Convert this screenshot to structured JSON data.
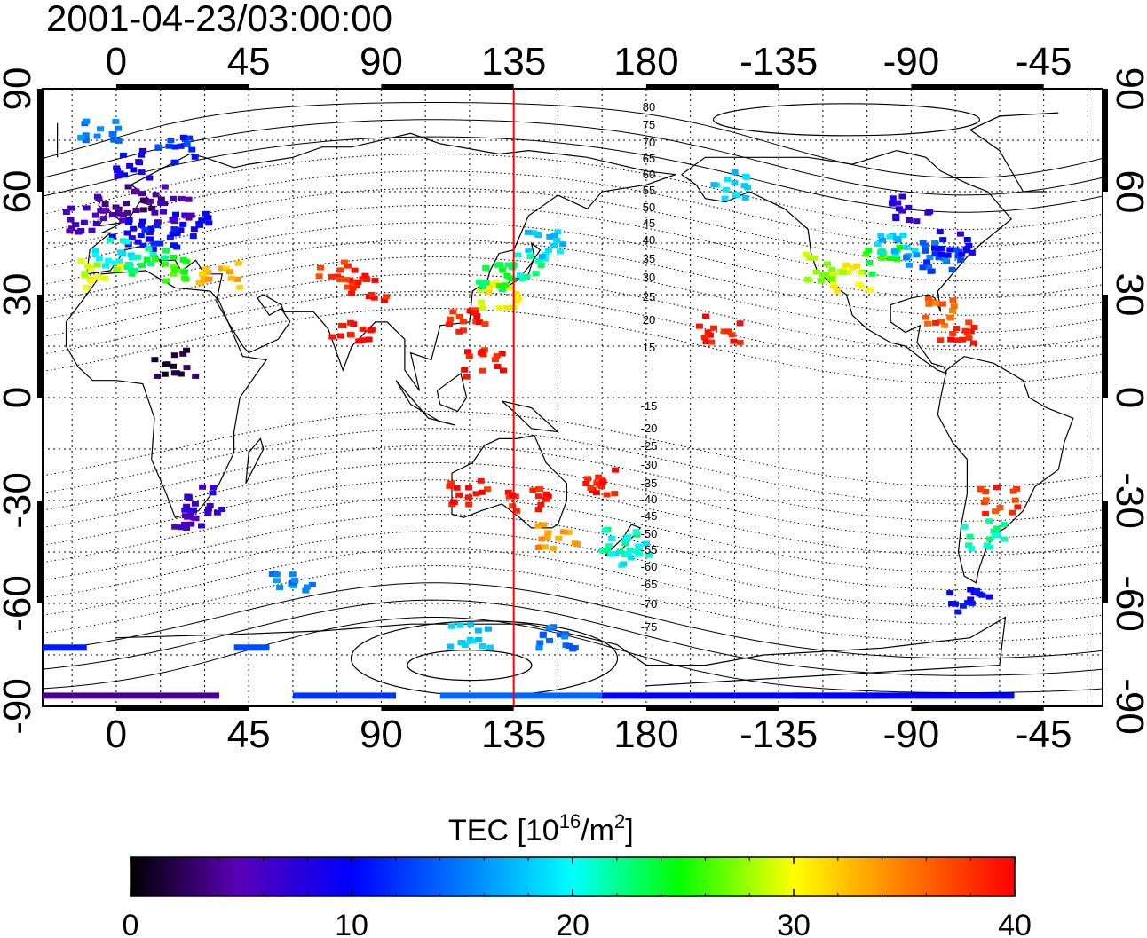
{
  "title": "2001-04-23/03:00:00",
  "map": {
    "top_lon_ticks": [
      "0",
      "45",
      "90",
      "135",
      "180",
      "-135",
      "-90",
      "-45"
    ],
    "bottom_lon_ticks": [
      "0",
      "45",
      "90",
      "135",
      "180",
      "-135",
      "-90",
      "-45"
    ],
    "left_lat_ticks": [
      "90",
      "60",
      "30",
      "0",
      "-30",
      "-60",
      "-90"
    ],
    "right_lat_ticks": [
      "90",
      "60",
      "30",
      "0",
      "-30",
      "-60",
      "-90"
    ],
    "lon_range": [
      -25,
      335
    ],
    "lat_range": [
      -90,
      90
    ],
    "grid": true,
    "marker_longitude": 135,
    "marker_color": "#ff0000",
    "magnetic_latitude_labels": [
      "80",
      "75",
      "70",
      "65",
      "60",
      "55",
      "50",
      "45",
      "40",
      "35",
      "30",
      "25",
      "20",
      "15",
      "-15",
      "-20",
      "-25",
      "-30",
      "-35",
      "-40",
      "-45",
      "-50",
      "-55",
      "-60",
      "-65",
      "-70",
      "-75"
    ]
  },
  "colorbar": {
    "label_prefix": "TEC  [10",
    "label_sup1": "16",
    "label_mid": "/m",
    "label_sup2": "2",
    "label_suffix": "]",
    "ticks": [
      "0",
      "10",
      "20",
      "30",
      "40"
    ],
    "range": [
      0,
      40
    ],
    "colors": [
      "#000000",
      "#5a00b4",
      "#0000ff",
      "#00ffff",
      "#00ff00",
      "#ffff00",
      "#ff0000"
    ]
  },
  "chart_data": {
    "type": "heatmap",
    "description_units": "TEC [10^16/m^2]",
    "points": [
      {
        "lon": 0,
        "lat": 55,
        "v": 5
      },
      {
        "lon": 10,
        "lat": 58,
        "v": 4
      },
      {
        "lon": 20,
        "lat": 55,
        "v": 6
      },
      {
        "lon": -10,
        "lat": 52,
        "v": 6
      },
      {
        "lon": 5,
        "lat": 48,
        "v": 9
      },
      {
        "lon": 15,
        "lat": 47,
        "v": 11
      },
      {
        "lon": 25,
        "lat": 50,
        "v": 10
      },
      {
        "lon": 0,
        "lat": 42,
        "v": 20
      },
      {
        "lon": 10,
        "lat": 40,
        "v": 23
      },
      {
        "lon": 20,
        "lat": 38,
        "v": 26
      },
      {
        "lon": -5,
        "lat": 36,
        "v": 29
      },
      {
        "lon": 35,
        "lat": 36,
        "v": 33
      },
      {
        "lon": 5,
        "lat": 68,
        "v": 9
      },
      {
        "lon": 20,
        "lat": 72,
        "v": 12
      },
      {
        "lon": -5,
        "lat": 78,
        "v": 15
      },
      {
        "lon": 75,
        "lat": 36,
        "v": 38
      },
      {
        "lon": 85,
        "lat": 32,
        "v": 39
      },
      {
        "lon": 80,
        "lat": 20,
        "v": 40
      },
      {
        "lon": 120,
        "lat": 22,
        "v": 39
      },
      {
        "lon": 125,
        "lat": 10,
        "v": 39
      },
      {
        "lon": 130,
        "lat": 30,
        "v": 30
      },
      {
        "lon": 140,
        "lat": 38,
        "v": 22
      },
      {
        "lon": 145,
        "lat": 45,
        "v": 18
      },
      {
        "lon": 130,
        "lat": 35,
        "v": 24
      },
      {
        "lon": 120,
        "lat": -28,
        "v": 39
      },
      {
        "lon": 140,
        "lat": -30,
        "v": 39
      },
      {
        "lon": 150,
        "lat": -40,
        "v": 34
      },
      {
        "lon": 170,
        "lat": -42,
        "v": 22
      },
      {
        "lon": 175,
        "lat": -45,
        "v": 20
      },
      {
        "lon": 165,
        "lat": -25,
        "v": 39
      },
      {
        "lon": 25,
        "lat": -35,
        "v": 6
      },
      {
        "lon": 30,
        "lat": -30,
        "v": 7
      },
      {
        "lon": 20,
        "lat": 10,
        "v": 2
      },
      {
        "lon": -100,
        "lat": 40,
        "v": 25
      },
      {
        "lon": -95,
        "lat": 45,
        "v": 18
      },
      {
        "lon": -85,
        "lat": 42,
        "v": 15
      },
      {
        "lon": -80,
        "lat": 40,
        "v": 12
      },
      {
        "lon": -75,
        "lat": 45,
        "v": 9
      },
      {
        "lon": -110,
        "lat": 35,
        "v": 30
      },
      {
        "lon": -120,
        "lat": 38,
        "v": 28
      },
      {
        "lon": -150,
        "lat": 62,
        "v": 18
      },
      {
        "lon": -90,
        "lat": 55,
        "v": 8
      },
      {
        "lon": -155,
        "lat": 20,
        "v": 39
      },
      {
        "lon": -80,
        "lat": 25,
        "v": 36
      },
      {
        "lon": -75,
        "lat": 18,
        "v": 39
      },
      {
        "lon": -60,
        "lat": -30,
        "v": 38
      },
      {
        "lon": -65,
        "lat": -40,
        "v": 22
      },
      {
        "lon": -70,
        "lat": -60,
        "v": 10
      },
      {
        "lon": 120,
        "lat": -70,
        "v": 18
      },
      {
        "lon": 150,
        "lat": -70,
        "v": 14
      },
      {
        "lon": 60,
        "lat": -55,
        "v": 15
      }
    ]
  }
}
